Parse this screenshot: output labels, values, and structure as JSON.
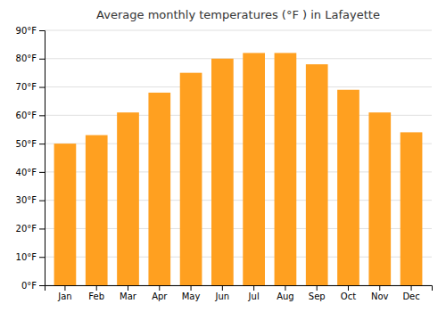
{
  "chart_data": {
    "type": "bar",
    "title": "Average monthly temperatures (°F ) in Lafayette",
    "categories": [
      "Jan",
      "Feb",
      "Mar",
      "Apr",
      "May",
      "Jun",
      "Jul",
      "Aug",
      "Sep",
      "Oct",
      "Nov",
      "Dec"
    ],
    "values": [
      50,
      53,
      61,
      68,
      75,
      80,
      82,
      82,
      78,
      69,
      61,
      54
    ],
    "color": "#FFA020",
    "ylim": [
      0,
      90
    ],
    "yticks": [
      {
        "value": 0,
        "label": "0°F"
      },
      {
        "value": 10,
        "label": "10°F"
      },
      {
        "value": 20,
        "label": "20°F"
      },
      {
        "value": 30,
        "label": "30°F"
      },
      {
        "value": 40,
        "label": "40°F"
      },
      {
        "value": 50,
        "label": "50°F"
      },
      {
        "value": 60,
        "label": "60°F"
      },
      {
        "value": 70,
        "label": "70°F"
      },
      {
        "value": 80,
        "label": "80°F"
      },
      {
        "value": 90,
        "label": "90°F"
      }
    ],
    "grid": true
  }
}
